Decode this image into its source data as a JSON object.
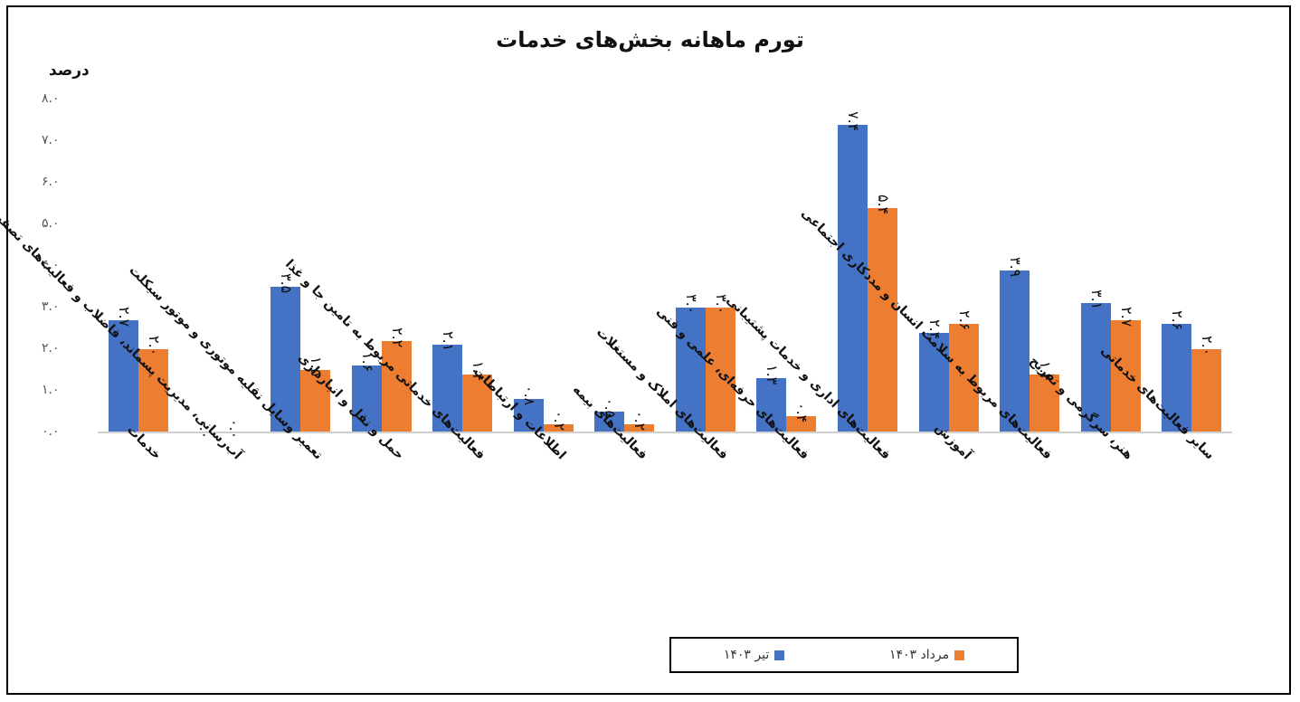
{
  "chart_data": {
    "type": "bar",
    "title": "تورم ماهانه بخش‌های خدمات",
    "ylabel": "درصد",
    "xlabel": "",
    "ylim": [
      0,
      8
    ],
    "yticks": [
      "۰.۰",
      "۱.۰",
      "۲.۰",
      "۳.۰",
      "۴.۰",
      "۵.۰",
      "۶.۰",
      "۷.۰",
      "۸.۰"
    ],
    "grid": false,
    "legend_position": "bottom",
    "categories": [
      "خدمات",
      "آب‌رسانی، مدیریت پسماند، فاضلاب و فعالیت‌های تصفیه",
      "تعمیر وسایل نقلیه موتوری و موتور سیکلت",
      "حمل و نقل و انبارداری",
      "فعالیت‌های خدماتی مربوط به تامین جا و غذا",
      "اطلاعات و ارتباطات",
      "فعالیت‌های بیمه",
      "فعالیت‌های املاک و مستغلات",
      "فعالیت‌های حرفه‌ای، علمی و فنی",
      "فعالیت‌های اداری و خدمات پشتیبانی",
      "آموزش",
      "فعالیت‌های مربوط به سلامت انسان و مددکاری اجتماعی",
      "هنر، سرگرمی و تفریح",
      "سایر فعالیت‌های خدماتی"
    ],
    "series": [
      {
        "name": "تیر ۱۴۰۳",
        "color": "#4472C4",
        "values": [
          2.7,
          0.0,
          3.5,
          1.6,
          2.1,
          0.8,
          0.5,
          3.0,
          1.3,
          7.4,
          2.4,
          3.9,
          3.1,
          2.6
        ],
        "labels": [
          "۲.۷",
          "۰.۰",
          "۳.۵",
          "۱.۶",
          "۲.۱",
          "۰.۸",
          "۰.۵",
          "۳.۰",
          "۱.۳",
          "۷.۴",
          "۲.۴",
          "۳.۹",
          "۳.۱",
          "۲.۶"
        ]
      },
      {
        "name": "مرداد ۱۴۰۳",
        "color": "#ED7D31",
        "values": [
          2.0,
          0.0,
          1.5,
          2.2,
          1.4,
          0.2,
          0.2,
          3.0,
          0.4,
          5.4,
          2.6,
          1.4,
          2.7,
          2.0
        ],
        "labels": [
          "۲.۰",
          "۰.۰",
          "۱.۵",
          "۲.۲",
          "۱.۴",
          "۰.۲",
          "۰.۲",
          "۳.۰",
          "۰.۴",
          "۵.۴",
          "۲.۶",
          "۱.۴",
          "۲.۷",
          "۲.۰"
        ]
      }
    ]
  },
  "legend": {
    "items": [
      {
        "label": "مرداد ۱۴۰۳",
        "color": "#ED7D31"
      },
      {
        "label": "تیر ۱۴۰۳",
        "color": "#4472C4"
      }
    ]
  }
}
